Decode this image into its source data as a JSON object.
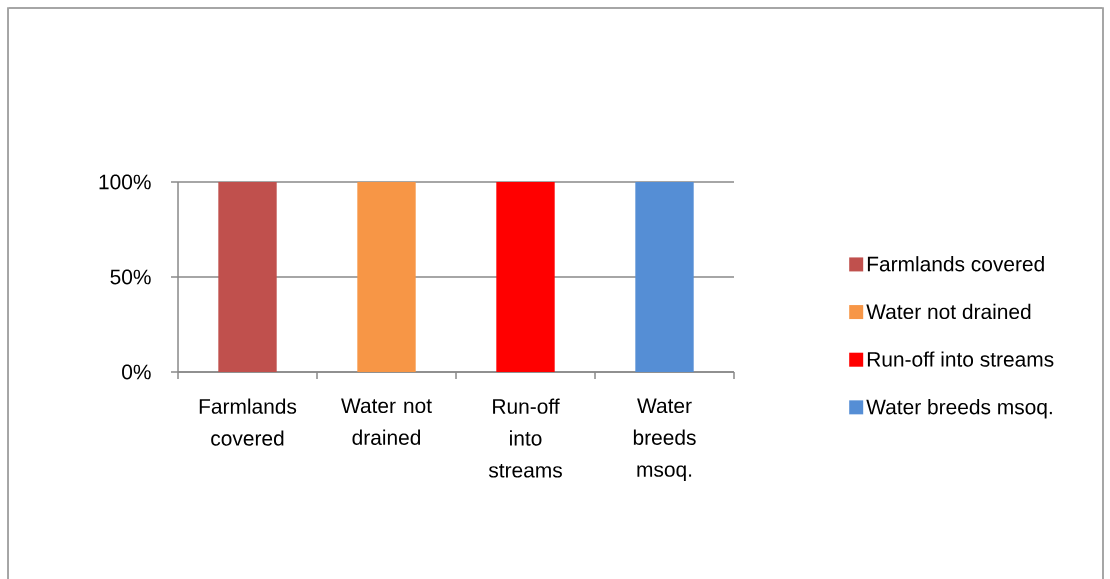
{
  "chart_data": {
    "type": "bar",
    "categories": [
      "Farmlands covered",
      "Water not drained",
      "Run-off into streams",
      "Water breeds msoq."
    ],
    "series": [
      {
        "name": "Farmlands covered",
        "color": "#c0504d",
        "values": [
          100,
          null,
          null,
          null
        ]
      },
      {
        "name": "Water not drained",
        "color": "#f79646",
        "values": [
          null,
          100,
          null,
          null
        ]
      },
      {
        "name": "Run-off into streams",
        "color": "#ff0000",
        "values": [
          null,
          null,
          100,
          null
        ]
      },
      {
        "name": "Water breeds msoq.",
        "color": "#558ed5",
        "values": [
          null,
          null,
          null,
          100
        ]
      }
    ],
    "ylim": [
      0,
      100
    ],
    "yticks": [
      {
        "value": 0,
        "label": "0%"
      },
      {
        "value": 50,
        "label": "50%"
      },
      {
        "value": 100,
        "label": "100%"
      }
    ],
    "grid": "y",
    "legend": "right"
  }
}
